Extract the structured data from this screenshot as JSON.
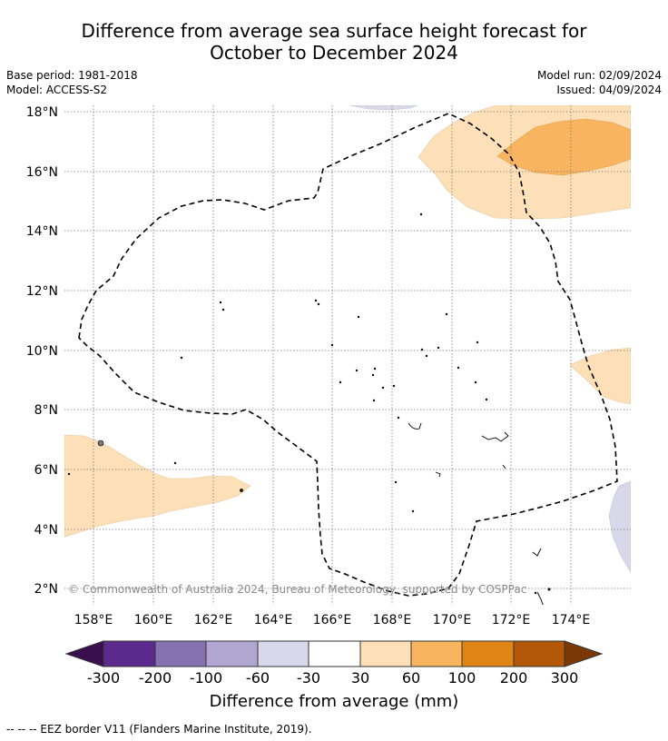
{
  "title_line1": "Difference from average sea surface height forecast for",
  "title_line2": "October to December 2024",
  "base_period": "Base period: 1981-2018",
  "model": "Model: ACCESS-S2",
  "model_run": "Model run: 02/09/2024",
  "issued": "Issued: 04/09/2024",
  "x_ticks": [
    "158°E",
    "160°E",
    "162°E",
    "164°E",
    "166°E",
    "168°E",
    "170°E",
    "172°E",
    "174°E"
  ],
  "y_ticks": [
    "18°N",
    "16°N",
    "14°N",
    "12°N",
    "10°N",
    "8°N",
    "6°N",
    "4°N",
    "2°N"
  ],
  "copyright": "© Commonwealth of Australia 2024, Bureau of Meteorology, supported by COSPPac",
  "colorbar": {
    "label": "Difference from average (mm)",
    "tick_labels": [
      "-300",
      "-200",
      "-100",
      "-60",
      "-30",
      "30",
      "60",
      "100",
      "200",
      "300"
    ],
    "colors": [
      "#3b0f4f",
      "#5b2a8c",
      "#8671b0",
      "#b0a6d1",
      "#d8d8ea",
      "#ffffff",
      "#fde0b8",
      "#f9b460",
      "#e08416",
      "#b25808",
      "#7a3806"
    ]
  },
  "colors": {
    "neg_light": "#d8d8ea",
    "pos_light": "#fde0b8",
    "pos_mid": "#f9b460"
  },
  "footer": "--  --  -- EEZ border V11 (Flanders Marine Institute, 2019)."
}
